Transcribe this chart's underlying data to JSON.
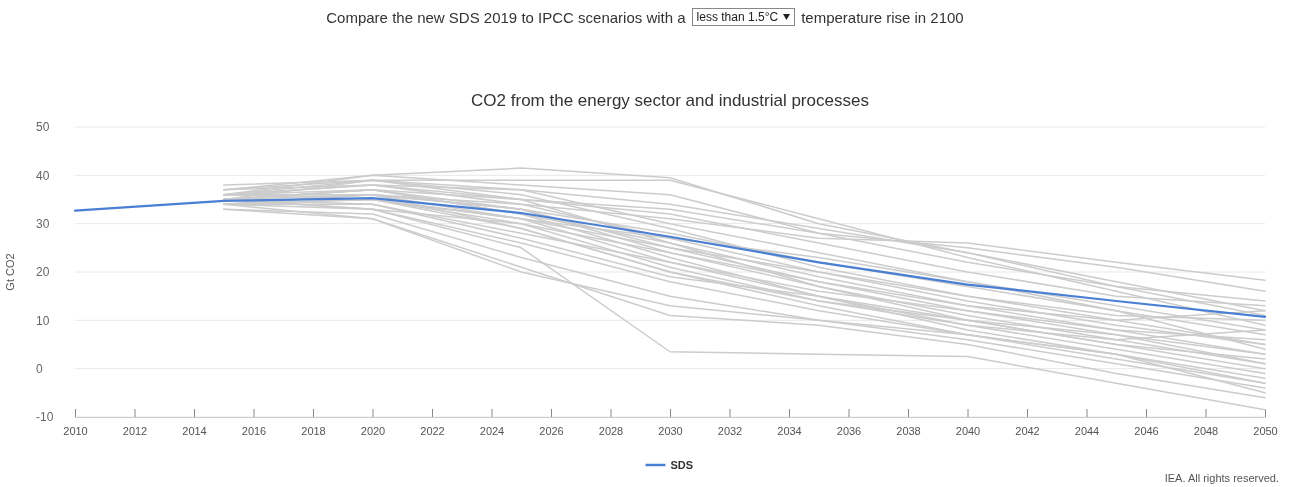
{
  "chart_data": {
    "type": "line",
    "title": "CO2 from the energy sector and industrial processes",
    "ylabel": "Gt CO2",
    "annotations": [
      "Compare the new SDS 2019 to IPCC scenarios with a",
      "less than 1.5°C",
      "temperature rise in 2100",
      "IEA. All rights reserved."
    ],
    "xlim": [
      2010,
      2050
    ],
    "xticks": [
      2010,
      2012,
      2014,
      2016,
      2018,
      2020,
      2022,
      2024,
      2026,
      2028,
      2030,
      2032,
      2034,
      2036,
      2038,
      2040,
      2042,
      2044,
      2046,
      2048,
      2050
    ],
    "ylim": [
      -10,
      50
    ],
    "yticks": [
      -10,
      0,
      10,
      20,
      30,
      40,
      50
    ],
    "grid": "y",
    "legend": "bottom",
    "line_style": "solid",
    "series": [
      {
        "color": "#cccccc",
        "x": [
          2015,
          2020,
          2025,
          2030,
          2035,
          2040,
          2045,
          2050
        ],
        "values": [
          36,
          40,
          41.5,
          39.5,
          30,
          24,
          18,
          12
        ]
      },
      {
        "color": "#cccccc",
        "x": [
          2015,
          2020,
          2025,
          2030,
          2035,
          2040,
          2045,
          2050
        ],
        "values": [
          35,
          39,
          39,
          39,
          31,
          23,
          16,
          9
        ]
      },
      {
        "color": "#cccccc",
        "x": [
          2015,
          2020,
          2025,
          2030,
          2035,
          2040,
          2045,
          2050
        ],
        "values": [
          37,
          40,
          38,
          36,
          28,
          22,
          17,
          14
        ]
      },
      {
        "color": "#cccccc",
        "x": [
          2015,
          2020,
          2025,
          2030,
          2035,
          2040,
          2045,
          2050
        ],
        "values": [
          34,
          36,
          34,
          31,
          27,
          26,
          22,
          18.3
        ]
      },
      {
        "color": "#cccccc",
        "x": [
          2015,
          2020,
          2025,
          2030,
          2035,
          2040,
          2045,
          2050
        ],
        "values": [
          35,
          37,
          35,
          33,
          28,
          25,
          21,
          16
        ]
      },
      {
        "color": "#cccccc",
        "x": [
          2015,
          2020,
          2025,
          2030,
          2035,
          2040,
          2045,
          2050
        ],
        "values": [
          36,
          38,
          37,
          30,
          24,
          18,
          13,
          8
        ]
      },
      {
        "color": "#cccccc",
        "x": [
          2015,
          2020,
          2025,
          2030,
          2035,
          2040,
          2045,
          2050
        ],
        "values": [
          35,
          36,
          33,
          28,
          22,
          17,
          12,
          7
        ]
      },
      {
        "color": "#cccccc",
        "x": [
          2015,
          2020,
          2025,
          2030,
          2035,
          2040,
          2045,
          2050
        ],
        "values": [
          34,
          35,
          31,
          25,
          20,
          15,
          10,
          5
        ]
      },
      {
        "color": "#cccccc",
        "x": [
          2015,
          2020,
          2025,
          2030,
          2035,
          2040,
          2045,
          2050
        ],
        "values": [
          36,
          37,
          32,
          26,
          19,
          13,
          8,
          3
        ]
      },
      {
        "color": "#cccccc",
        "x": [
          2015,
          2020,
          2025,
          2030,
          2035,
          2040,
          2045,
          2050
        ],
        "values": [
          35,
          35,
          30,
          24,
          17,
          11,
          6,
          1
        ]
      },
      {
        "color": "#cccccc",
        "x": [
          2015,
          2020,
          2025,
          2030,
          2035,
          2040,
          2045,
          2050
        ],
        "values": [
          34,
          34,
          28,
          22,
          15,
          9,
          4,
          -1
        ]
      },
      {
        "color": "#cccccc",
        "x": [
          2015,
          2020,
          2025,
          2030,
          2035,
          2040,
          2045,
          2050
        ],
        "values": [
          36,
          36,
          29,
          20,
          13,
          7,
          2,
          -3
        ]
      },
      {
        "color": "#cccccc",
        "x": [
          2015,
          2020,
          2025,
          2030,
          2035,
          2040,
          2045,
          2050
        ],
        "values": [
          35,
          33,
          26,
          18,
          12,
          7,
          3,
          -2
        ]
      },
      {
        "color": "#cccccc",
        "x": [
          2015,
          2020,
          2025,
          2030,
          2035,
          2040,
          2045,
          2050
        ],
        "values": [
          33,
          32,
          23,
          15,
          10,
          6,
          1,
          -4
        ]
      },
      {
        "color": "#cccccc",
        "x": [
          2015,
          2020,
          2025,
          2030,
          2035,
          2040,
          2045,
          2050
        ],
        "values": [
          34,
          31,
          21,
          11,
          9,
          5,
          -1,
          -6
        ]
      },
      {
        "color": "#cccccc",
        "x": [
          2015,
          2020,
          2025,
          2030,
          2035,
          2040,
          2045,
          2050
        ],
        "values": [
          35,
          33,
          25,
          3.5,
          3,
          2.5,
          -3,
          -8.5
        ]
      },
      {
        "color": "#cccccc",
        "x": [
          2015,
          2020,
          2025,
          2030,
          2035,
          2040,
          2045,
          2050
        ],
        "values": [
          37,
          38,
          34,
          27,
          20,
          14,
          9,
          5
        ]
      },
      {
        "color": "#cccccc",
        "x": [
          2015,
          2020,
          2025,
          2030,
          2035,
          2040,
          2045,
          2050
        ],
        "values": [
          36,
          39,
          36,
          29,
          21,
          15,
          11,
          10
        ]
      },
      {
        "color": "#cccccc",
        "x": [
          2015,
          2020,
          2025,
          2030,
          2035,
          2040,
          2045,
          2050
        ],
        "values": [
          35,
          37,
          33,
          24,
          18,
          13,
          10,
          12
        ]
      },
      {
        "color": "#cccccc",
        "x": [
          2015,
          2020,
          2025,
          2030,
          2035,
          2040,
          2045,
          2050
        ],
        "values": [
          34,
          36,
          31,
          22,
          16,
          12,
          8,
          6
        ]
      },
      {
        "color": "#cccccc",
        "x": [
          2015,
          2020,
          2025,
          2030,
          2035,
          2040,
          2045,
          2050
        ],
        "values": [
          38,
          39,
          35,
          26,
          17,
          10,
          5,
          0
        ]
      },
      {
        "color": "#cccccc",
        "x": [
          2015,
          2020,
          2025,
          2030,
          2035,
          2040,
          2045,
          2050
        ],
        "values": [
          33,
          31,
          20,
          13,
          10,
          7,
          3,
          -5
        ]
      },
      {
        "color": "#cccccc",
        "x": [
          2015,
          2020,
          2025,
          2030,
          2035,
          2040,
          2045,
          2050
        ],
        "values": [
          35,
          34,
          27,
          19,
          15,
          10,
          5,
          2
        ]
      },
      {
        "color": "#cccccc",
        "x": [
          2015,
          2020,
          2025,
          2030,
          2035,
          2040,
          2045,
          2050
        ],
        "values": [
          36,
          35,
          31,
          27,
          23,
          18,
          12,
          4
        ]
      },
      {
        "color": "#cccccc",
        "x": [
          2015,
          2020,
          2025,
          2030,
          2035,
          2040,
          2045,
          2050
        ],
        "values": [
          37,
          39,
          37,
          34,
          29,
          24,
          17,
          11
        ]
      },
      {
        "color": "#cccccc",
        "x": [
          2015,
          2020,
          2025,
          2030,
          2035,
          2040,
          2045,
          2050
        ],
        "values": [
          34,
          33,
          30,
          21,
          14,
          10,
          7,
          3
        ]
      },
      {
        "color": "#cccccc",
        "x": [
          2015,
          2020,
          2025,
          2030,
          2035,
          2040,
          2045,
          2050
        ],
        "values": [
          35,
          37,
          32,
          23,
          15,
          8,
          3,
          -3
        ]
      },
      {
        "color": "#cccccc",
        "x": [
          2015,
          2020,
          2025,
          2030,
          2035,
          2040,
          2045,
          2050
        ],
        "values": [
          36,
          36,
          33,
          25,
          18,
          12,
          7,
          1
        ]
      },
      {
        "color": "#cccccc",
        "x": [
          2015,
          2020,
          2025,
          2030,
          2035,
          2040,
          2045,
          2050
        ],
        "values": [
          34,
          35,
          29,
          20,
          14,
          9,
          6,
          8
        ]
      },
      {
        "color": "#cccccc",
        "x": [
          2015,
          2020,
          2025,
          2030,
          2035,
          2040,
          2045,
          2050
        ],
        "values": [
          36,
          38,
          35,
          32,
          26,
          20,
          15,
          13
        ]
      },
      {
        "name": "SDS",
        "color": "#4a7fd4",
        "x": [
          2010,
          2015,
          2020,
          2025,
          2030,
          2035,
          2040,
          2045,
          2050
        ],
        "values": [
          32.7,
          34.7,
          35.3,
          32.2,
          27.3,
          22,
          17.4,
          14,
          10.7
        ]
      }
    ]
  }
}
